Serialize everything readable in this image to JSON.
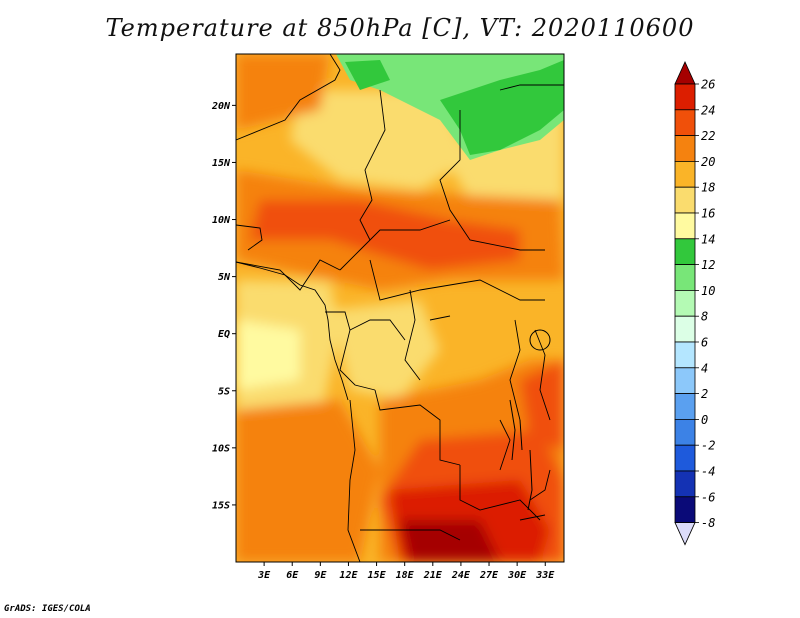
{
  "title": "Temperature at 850hPa [C], VT: 2020110600",
  "credit": "GrADS: IGES/COLA",
  "map": {
    "lat_labels": [
      {
        "text": "20N",
        "lat": 20
      },
      {
        "text": "15N",
        "lat": 15
      },
      {
        "text": "10N",
        "lat": 10
      },
      {
        "text": "5N",
        "lat": 5
      },
      {
        "text": "EQ",
        "lat": 0
      },
      {
        "text": "5S",
        "lat": -5
      },
      {
        "text": "10S",
        "lat": -10
      },
      {
        "text": "15S",
        "lat": -15
      }
    ],
    "lon_labels": [
      {
        "text": "3E",
        "lon": 3
      },
      {
        "text": "6E",
        "lon": 6
      },
      {
        "text": "9E",
        "lon": 9
      },
      {
        "text": "12E",
        "lon": 12
      },
      {
        "text": "15E",
        "lon": 15
      },
      {
        "text": "18E",
        "lon": 18
      },
      {
        "text": "21E",
        "lon": 21
      },
      {
        "text": "24E",
        "lon": 24
      },
      {
        "text": "27E",
        "lon": 27
      },
      {
        "text": "30E",
        "lon": 30
      },
      {
        "text": "33E",
        "lon": 33
      }
    ],
    "lat_range": [
      -20,
      24.5
    ],
    "lon_range": [
      0,
      35
    ]
  },
  "colorbar": {
    "labels": [
      "26",
      "24",
      "22",
      "20",
      "18",
      "16",
      "14",
      "12",
      "10",
      "8",
      "6",
      "4",
      "2",
      "0",
      "-2",
      "-4",
      "-6",
      "-8"
    ],
    "colors": [
      "#a50000",
      "#dc1e00",
      "#f0500a",
      "#f5820f",
      "#fab428",
      "#fadc6e",
      "#fffaa0",
      "#32c83c",
      "#78e678",
      "#b4fab4",
      "#dcffe6",
      "#b4e6ff",
      "#8cc8fa",
      "#5aa0f0",
      "#3c82e6",
      "#1e5adc",
      "#1432b4",
      "#0a0a78",
      "#dcdcfa"
    ]
  }
}
